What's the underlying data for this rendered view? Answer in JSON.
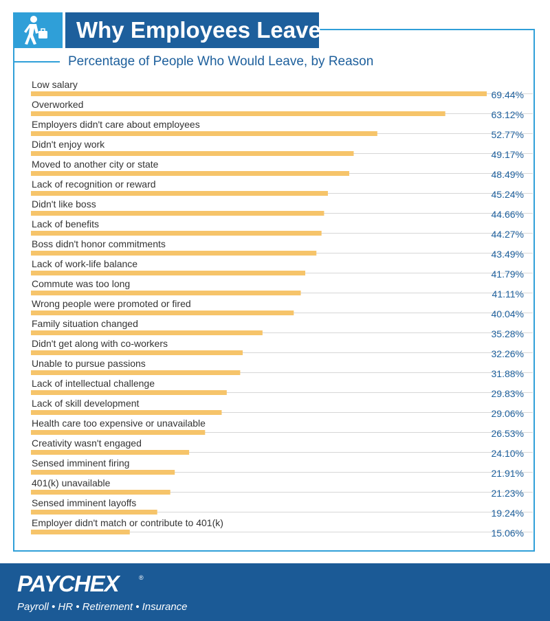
{
  "header": {
    "title": "Why Employees Leave",
    "subtitle": "Percentage of People Who Would Leave, by Reason",
    "icon": "person-with-briefcase-icon"
  },
  "footer": {
    "logo": "PAYCHEX",
    "logo_mark": "®",
    "tagline": "Payroll • HR • Retirement • Insurance"
  },
  "colors": {
    "accent_blue": "#2f9fd8",
    "title_navy": "#1d5f9c",
    "footer_navy": "#1b5a96",
    "bar": "#f6c46a",
    "value_text": "#1d5f9c",
    "label_text": "#333333",
    "gridline": "#d6d6d6"
  },
  "chart_data": {
    "type": "bar",
    "orientation": "horizontal",
    "categories": [
      "Low salary",
      "Overworked",
      "Employers didn't care about employees",
      "Didn't enjoy work",
      "Moved to another city or state",
      "Lack of recognition or reward",
      "Didn't like boss",
      "Lack of benefits",
      "Boss didn't honor commitments",
      "Lack of work-life balance",
      "Commute was too long",
      "Wrong people were promoted or fired",
      "Family situation changed",
      "Didn't get along with co-workers",
      "Unable to pursue passions",
      "Lack of intellectual challenge",
      "Lack of skill development",
      "Health care too expensive or unavailable",
      "Creativity wasn't engaged",
      "Sensed imminent firing",
      "401(k) unavailable",
      "Sensed imminent layoffs",
      "Employer didn't match or contribute to 401(k)"
    ],
    "values": [
      69.44,
      63.12,
      52.77,
      49.17,
      48.49,
      45.24,
      44.66,
      44.27,
      43.49,
      41.79,
      41.11,
      40.04,
      35.28,
      32.26,
      31.88,
      29.83,
      29.06,
      26.53,
      24.1,
      21.91,
      21.23,
      19.24,
      15.06
    ],
    "value_labels": [
      "69.44%",
      "63.12%",
      "52.77%",
      "49.17%",
      "48.49%",
      "45.24%",
      "44.66%",
      "44.27%",
      "43.49%",
      "41.79%",
      "41.11%",
      "40.04%",
      "35.28%",
      "32.26%",
      "31.88%",
      "29.83%",
      "29.06%",
      "26.53%",
      "24.10%",
      "21.91%",
      "21.23%",
      "19.24%",
      "15.06%"
    ],
    "xlim": [
      0,
      69.44
    ],
    "grid": true,
    "legend": "none"
  }
}
